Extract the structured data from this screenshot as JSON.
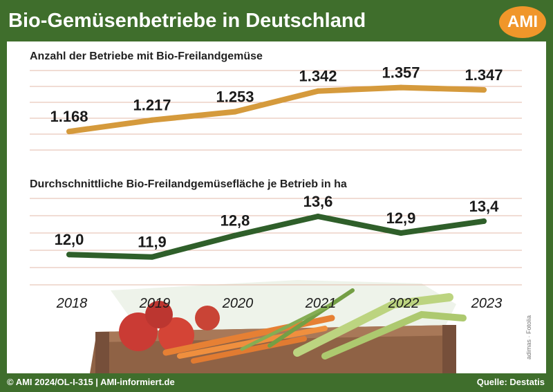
{
  "header": {
    "title": "Bio-Gemüsenbetriebe in Deutschland",
    "logo_text": "AMI"
  },
  "footer": {
    "left": "© AMI 2024/OL-I-315 | AMI-informiert.de",
    "right": "Quelle: Destatis"
  },
  "photo_credit": "adimas · Fotolia",
  "colors": {
    "frame": "#3f6e2c",
    "series1": "#d59a3c",
    "series2": "#2f5f2a",
    "grid": "#e3b8a8"
  },
  "chart_data": [
    {
      "type": "line",
      "title": "Anzahl der Betriebe mit Bio-Freilandgemüse",
      "categories": [
        "2018",
        "2019",
        "2020",
        "2021",
        "2022",
        "2023"
      ],
      "values": [
        1168,
        1217,
        1253,
        1342,
        1357,
        1347
      ],
      "data_labels": [
        "1.168",
        "1.217",
        "1.253",
        "1.342",
        "1.357",
        "1.347"
      ],
      "ylim": [
        1020,
        1460
      ],
      "grid": true
    },
    {
      "type": "line",
      "title": "Durchschnittliche Bio-Freilandgemüsefläche je Betrieb in ha",
      "categories": [
        "2018",
        "2019",
        "2020",
        "2021",
        "2022",
        "2023"
      ],
      "values": [
        12.0,
        11.9,
        12.8,
        13.6,
        12.9,
        13.4
      ],
      "data_labels": [
        "12,0",
        "11,9",
        "12,8",
        "13,6",
        "12,9",
        "13,4"
      ],
      "ylim": [
        10.5,
        14.7
      ],
      "grid": true
    }
  ]
}
